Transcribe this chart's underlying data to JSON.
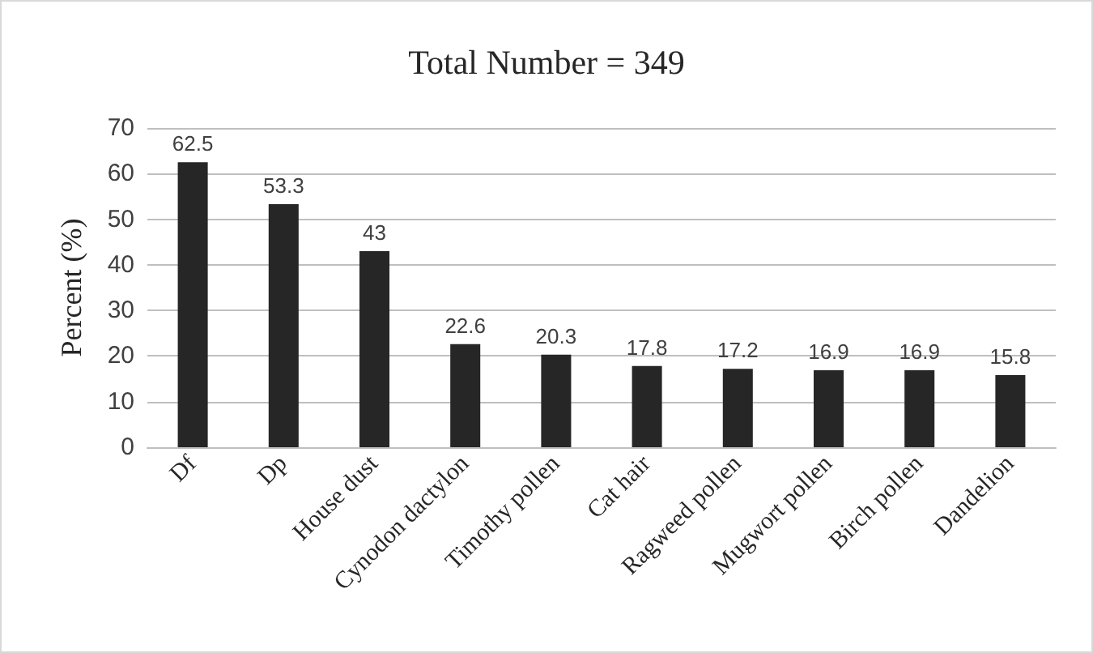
{
  "chart_data": {
    "type": "bar",
    "title": "Total Number = 349",
    "ylabel": "Percent (%)",
    "categories": [
      "Df",
      "Dp",
      "House dust",
      "Cynodon dactylon",
      "Timothy pollen",
      "Cat hair",
      "Ragweed pollen",
      "Mugwort pollen",
      "Birch pollen",
      "Dandelion"
    ],
    "values": [
      62.5,
      53.3,
      43,
      22.6,
      20.3,
      17.8,
      17.2,
      16.9,
      16.9,
      15.8
    ],
    "color": "#262626",
    "ylim": [
      0,
      70
    ],
    "yticks": [
      0,
      10,
      20,
      30,
      40,
      50,
      60,
      70
    ],
    "grid": "y",
    "data_labels": true
  }
}
